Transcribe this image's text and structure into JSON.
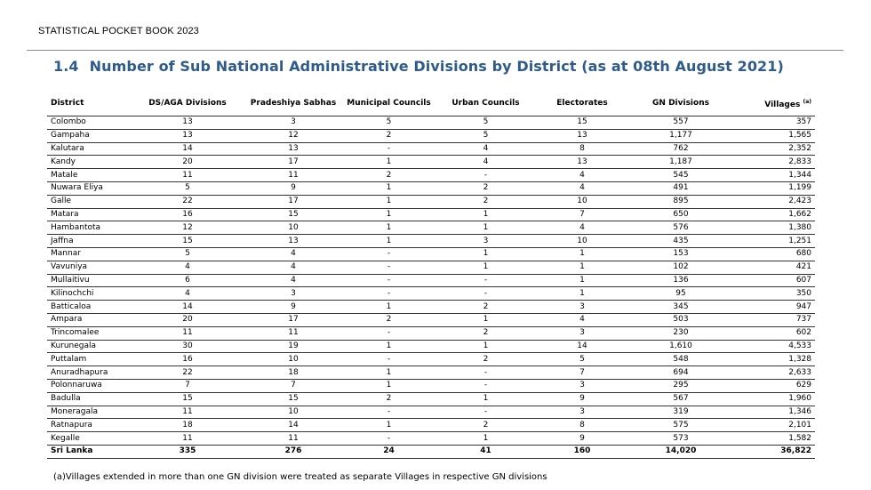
{
  "header": {
    "book_title": "STATISTICAL POCKET BOOK 2023"
  },
  "section": {
    "number": "1.4",
    "title": "Number of Sub National Administrative Divisions by District (as at  08th August 2021)"
  },
  "table": {
    "columns": [
      "District",
      "DS/AGA Divisions",
      "Pradeshiya Sabhas",
      "Municipal Councils",
      "Urban Councils",
      "Electorates",
      "GN Divisions",
      "Villages"
    ],
    "villages_note_marker": "(a)",
    "rows": [
      [
        "Colombo",
        "13",
        "3",
        "5",
        "5",
        "15",
        "557",
        "357"
      ],
      [
        "Gampaha",
        "13",
        "12",
        "2",
        "5",
        "13",
        "1,177",
        "1,565"
      ],
      [
        "Kalutara",
        "14",
        "13",
        "-",
        "4",
        "8",
        "762",
        "2,352"
      ],
      [
        "Kandy",
        "20",
        "17",
        "1",
        "4",
        "13",
        "1,187",
        "2,833"
      ],
      [
        "Matale",
        "11",
        "11",
        "2",
        "-",
        "4",
        "545",
        "1,344"
      ],
      [
        "Nuwara Eliya",
        "5",
        "9",
        "1",
        "2",
        "4",
        "491",
        "1,199"
      ],
      [
        "Galle",
        "22",
        "17",
        "1",
        "2",
        "10",
        "895",
        "2,423"
      ],
      [
        "Matara",
        "16",
        "15",
        "1",
        "1",
        "7",
        "650",
        "1,662"
      ],
      [
        "Hambantota",
        "12",
        "10",
        "1",
        "1",
        "4",
        "576",
        "1,380"
      ],
      [
        "Jaffna",
        "15",
        "13",
        "1",
        "3",
        "10",
        "435",
        "1,251"
      ],
      [
        "Mannar",
        "5",
        "4",
        "-",
        "1",
        "1",
        "153",
        "680"
      ],
      [
        "Vavuniya",
        "4",
        "4",
        "-",
        "1",
        "1",
        "102",
        "421"
      ],
      [
        "Mullaitivu",
        "6",
        "4",
        "-",
        "-",
        "1",
        "136",
        "607"
      ],
      [
        "Kilinochchi",
        "4",
        "3",
        "-",
        "-",
        "1",
        "95",
        "350"
      ],
      [
        "Batticaloa",
        "14",
        "9",
        "1",
        "2",
        "3",
        "345",
        "947"
      ],
      [
        "Ampara",
        "20",
        "17",
        "2",
        "1",
        "4",
        "503",
        "737"
      ],
      [
        "Trincomalee",
        "11",
        "11",
        "-",
        "2",
        "3",
        "230",
        "602"
      ],
      [
        "Kurunegala",
        "30",
        "19",
        "1",
        "1",
        "14",
        "1,610",
        "4,533"
      ],
      [
        "Puttalam",
        "16",
        "10",
        "-",
        "2",
        "5",
        "548",
        "1,328"
      ],
      [
        "Anuradhapura",
        "22",
        "18",
        "1",
        "-",
        "7",
        "694",
        "2,633"
      ],
      [
        "Polonnaruwa",
        "7",
        "7",
        "1",
        "-",
        "3",
        "295",
        "629"
      ],
      [
        "Badulla",
        "15",
        "15",
        "2",
        "1",
        "9",
        "567",
        "1,960"
      ],
      [
        "Moneragala",
        "11",
        "10",
        "-",
        "-",
        "3",
        "319",
        "1,346"
      ],
      [
        "Ratnapura",
        "18",
        "14",
        "1",
        "2",
        "8",
        "575",
        "2,101"
      ],
      [
        "Kegalle",
        "11",
        "11",
        "-",
        "1",
        "9",
        "573",
        "1,582"
      ]
    ],
    "total": [
      "Sri Lanka",
      "335",
      "276",
      "24",
      "41",
      "160",
      "14,020",
      "36,822"
    ]
  },
  "footnote": "(a)Villages extended in more than one GN division were treated as separate Villages in respective GN divisions"
}
